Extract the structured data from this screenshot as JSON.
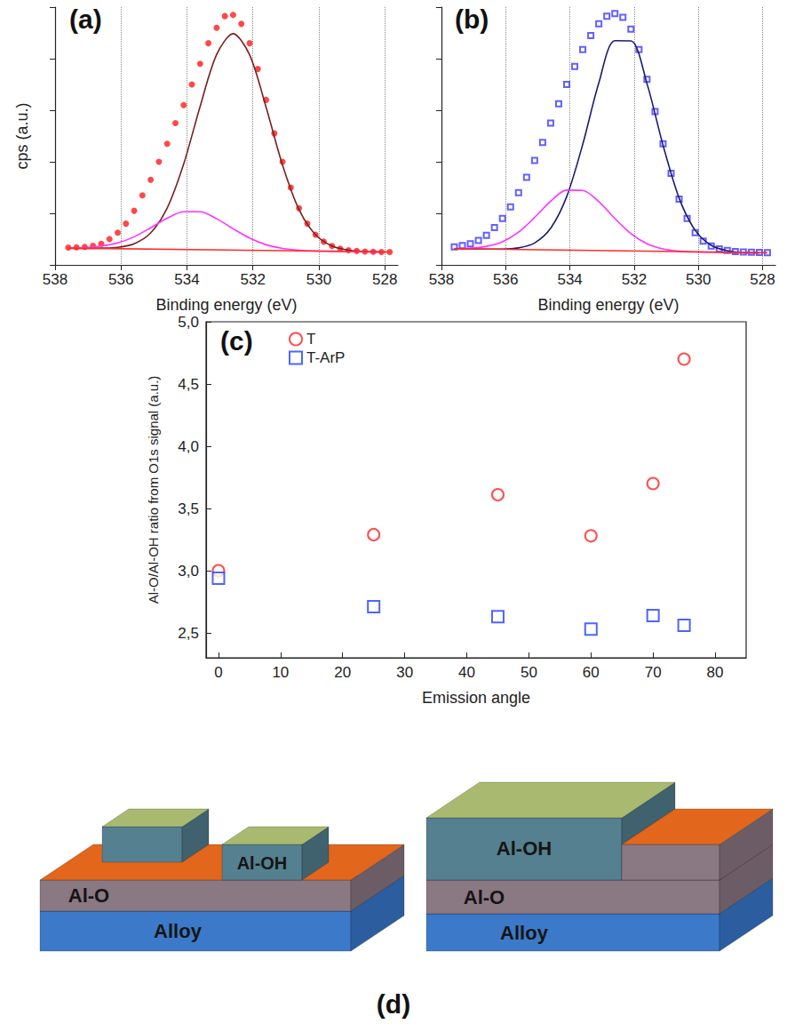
{
  "chart_data": [
    {
      "type": "line",
      "title": "(a)",
      "xlabel": "Binding energy (eV)",
      "ylabel": "cps (a.u.)",
      "xlim": [
        538,
        527.6
      ],
      "ylim": [
        0,
        100
      ],
      "xticks": [
        538,
        536,
        534,
        532,
        530,
        528
      ],
      "yticks": [
        0,
        20,
        40,
        60,
        80,
        100
      ],
      "tick_labels": "x",
      "grid": true,
      "series": [
        {
          "type": "scatter",
          "marker": "circle",
          "color": "#ff1a1a",
          "x": [
            537.6,
            537.35,
            537.1,
            536.85,
            536.6,
            536.35,
            536.1,
            535.85,
            535.6,
            535.35,
            535.1,
            534.85,
            534.6,
            534.35,
            534.1,
            533.85,
            533.6,
            533.35,
            533.1,
            532.85,
            532.6,
            532.35,
            532.1,
            531.85,
            531.6,
            531.35,
            531.1,
            530.85,
            530.6,
            530.35,
            530.1,
            529.85,
            529.6,
            529.35,
            529.1,
            528.85,
            528.6,
            528.35,
            528.1,
            527.85
          ],
          "values": [
            6.7,
            6.8,
            7.0,
            7.4,
            8.2,
            10,
            12.5,
            16,
            21,
            27,
            33,
            40,
            47,
            55,
            62,
            70,
            78,
            86,
            92,
            96.5,
            97,
            93.5,
            86,
            76,
            64,
            51,
            40,
            30,
            22,
            16,
            11.7,
            9,
            7.3,
            6.3,
            5.7,
            5.4,
            5.2,
            5.1,
            5.0,
            5.0
          ]
        },
        {
          "type": "line",
          "color": "#7a1f1f",
          "x": [
            537.6,
            537.1,
            536.6,
            536.1,
            535.6,
            535.1,
            534.6,
            534.1,
            533.6,
            533.1,
            532.6,
            532.1,
            531.6,
            531.1,
            530.6,
            530.1,
            529.6,
            529.1,
            528.6,
            528.1
          ],
          "values": [
            6.5,
            6.4,
            6.5,
            6.8,
            8.2,
            12.4,
            22.0,
            39.1,
            61.5,
            81.6,
            89.7,
            81.5,
            61.2,
            38.7,
            21.4,
            11.7,
            7.3,
            5.7,
            5.2,
            5.0
          ]
        },
        {
          "type": "line",
          "color": "#ff33ff",
          "x": [
            537.6,
            537.1,
            536.6,
            536.1,
            535.6,
            535.1,
            534.6,
            534.1,
            533.6,
            533.1,
            532.6,
            532.1,
            531.6,
            531.1,
            530.6,
            530.1,
            529.6,
            529.1,
            528.6,
            528.1
          ],
          "values": [
            6.5,
            6.7,
            7.3,
            8.5,
            10.9,
            14.4,
            18.1,
            20.6,
            20.6,
            17.9,
            14.0,
            10.4,
            7.8,
            6.4,
            5.7,
            5.4,
            5.3,
            5.2,
            5.1,
            5.0
          ]
        },
        {
          "type": "line",
          "color": "#ff2a2a",
          "x": [
            537.6,
            527.85
          ],
          "values": [
            6.5,
            5.0
          ]
        }
      ]
    },
    {
      "type": "line",
      "title": "(b)",
      "xlabel": "Binding energy (eV)",
      "xlim": [
        538,
        527.6
      ],
      "ylim": [
        0,
        100
      ],
      "xticks": [
        538,
        536,
        534,
        532,
        530,
        528
      ],
      "yticks": [
        0,
        20,
        40,
        60,
        80,
        100
      ],
      "tick_labels": "x",
      "grid": true,
      "series": [
        {
          "type": "scatter",
          "marker": "open_square",
          "color": "#3a3aff",
          "x": [
            537.6,
            537.35,
            537.1,
            536.85,
            536.6,
            536.35,
            536.1,
            535.85,
            535.6,
            535.35,
            535.1,
            534.85,
            534.6,
            534.35,
            534.1,
            533.85,
            533.6,
            533.35,
            533.1,
            532.85,
            532.6,
            532.35,
            532.1,
            531.85,
            531.6,
            531.35,
            531.1,
            530.85,
            530.6,
            530.35,
            530.1,
            529.85,
            529.6,
            529.35,
            529.1,
            528.85,
            528.6,
            528.35,
            528.1,
            527.85
          ],
          "values": [
            7.0,
            7.5,
            8.2,
            9.5,
            11.5,
            14.5,
            18,
            22.5,
            28,
            34,
            40.5,
            47.5,
            55,
            62.5,
            70,
            77,
            83.5,
            89,
            93.5,
            96.5,
            97.5,
            96,
            91.5,
            83.5,
            72,
            59.5,
            47,
            35.5,
            25.5,
            18,
            12.5,
            9.2,
            7.3,
            6.2,
            5.6,
            5.2,
            5.0,
            4.9,
            4.8,
            4.7
          ]
        },
        {
          "type": "line",
          "color": "#1c1c6e",
          "x": [
            537.6,
            537.1,
            536.6,
            536.1,
            535.6,
            535.1,
            534.6,
            534.1,
            533.6,
            533.1,
            532.6,
            532.1,
            531.6,
            531.1,
            530.6,
            530.1,
            529.6,
            529.1,
            528.6,
            528.1
          ],
          "values": [
            6.3,
            6.2,
            6.1,
            6.1,
            6.6,
            8.5,
            14.2,
            26.5,
            46.8,
            70.6,
            87.0,
            86.9,
            70.3,
            46.4,
            25.9,
            13.4,
            7.6,
            5.5,
            4.8,
            4.7
          ]
        },
        {
          "type": "line",
          "color": "#ff33ff",
          "x": [
            537.6,
            537.1,
            536.6,
            536.1,
            535.6,
            535.1,
            534.6,
            534.1,
            533.6,
            533.1,
            532.6,
            532.1,
            531.6,
            531.1,
            530.6,
            530.1,
            529.6,
            529.1,
            528.6,
            528.1
          ],
          "values": [
            6.4,
            6.5,
            7.2,
            9.0,
            12.7,
            18.4,
            24.7,
            29.0,
            28.9,
            24.5,
            18.0,
            12.1,
            8.2,
            6.2,
            5.3,
            5.0,
            4.9,
            4.8,
            4.7,
            4.7
          ]
        },
        {
          "type": "line",
          "color": "#ff2a2a",
          "x": [
            537.6,
            527.85
          ],
          "values": [
            6.3,
            4.7
          ]
        }
      ]
    },
    {
      "type": "scatter",
      "title": "(c)",
      "xlabel": "Emission angle",
      "ylabel": "Al-O/Al-OH ratio from O1s signal (a.u.)",
      "xlim": [
        -2,
        85
      ],
      "ylim": [
        2.3,
        5.0
      ],
      "xticks": [
        0,
        10,
        20,
        30,
        40,
        50,
        60,
        70,
        80
      ],
      "yticks": [
        {
          "value": 2.5,
          "label": "2,5"
        },
        {
          "value": 3.0,
          "label": "3,0"
        },
        {
          "value": 3.5,
          "label": "3,5"
        },
        {
          "value": 4.0,
          "label": "4,0"
        },
        {
          "value": 4.5,
          "label": "4,5"
        },
        {
          "value": 5.0,
          "label": "5,0"
        }
      ],
      "grid": false,
      "legend": "upper left",
      "x": [
        0,
        25,
        45,
        60,
        70,
        75
      ],
      "series": [
        {
          "name": "T",
          "marker": "open_circle",
          "color": "#ff2020",
          "values": [
            3.0,
            3.29,
            3.61,
            3.28,
            3.7,
            4.7
          ]
        },
        {
          "name": "T-ArP",
          "marker": "open_square",
          "color": "#1f3fff",
          "values": [
            2.94,
            2.71,
            2.63,
            2.53,
            2.64,
            2.56
          ]
        }
      ]
    }
  ],
  "diagram": {
    "label": "(d)",
    "stacks": [
      {
        "layers": [
          "Alloy",
          "Al-O"
        ],
        "islands": [
          null,
          "Al-OH"
        ]
      },
      {
        "layers": [
          "Alloy",
          "Al-O",
          "Al-OH"
        ]
      }
    ]
  }
}
